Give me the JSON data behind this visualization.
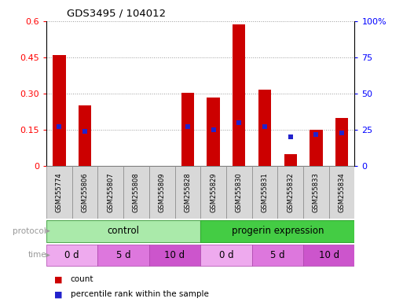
{
  "title": "GDS3495 / 104012",
  "samples": [
    "GSM255774",
    "GSM255806",
    "GSM255807",
    "GSM255808",
    "GSM255809",
    "GSM255828",
    "GSM255829",
    "GSM255830",
    "GSM255831",
    "GSM255832",
    "GSM255833",
    "GSM255834"
  ],
  "count_values": [
    0.46,
    0.25,
    0.0,
    0.0,
    0.0,
    0.305,
    0.285,
    0.585,
    0.315,
    0.05,
    0.15,
    0.2
  ],
  "percentile_values": [
    27,
    24,
    0,
    0,
    0,
    27,
    25,
    30,
    27,
    20,
    22,
    23
  ],
  "ylim_left": [
    0,
    0.6
  ],
  "ylim_right": [
    0,
    100
  ],
  "yticks_left": [
    0,
    0.15,
    0.3,
    0.45,
    0.6
  ],
  "ytick_labels_left": [
    "0",
    "0.15",
    "0.30",
    "0.45",
    "0.6"
  ],
  "yticks_right": [
    0,
    25,
    50,
    75,
    100
  ],
  "ytick_labels_right": [
    "0",
    "25",
    "50",
    "75",
    "100%"
  ],
  "bar_color": "#cc0000",
  "dot_color": "#2222cc",
  "sample_box_color": "#d8d8d8",
  "sample_box_edge": "#888888",
  "protocol_control_color": "#aaeaaa",
  "protocol_progerin_color": "#44cc44",
  "time_0d_color": "#eeaaee",
  "time_5d_color": "#dd77dd",
  "time_10d_color": "#cc55cc",
  "background_color": "#ffffff",
  "grid_color": "#999999",
  "bar_width": 0.5,
  "dot_size": 5,
  "label_color": "#999999"
}
